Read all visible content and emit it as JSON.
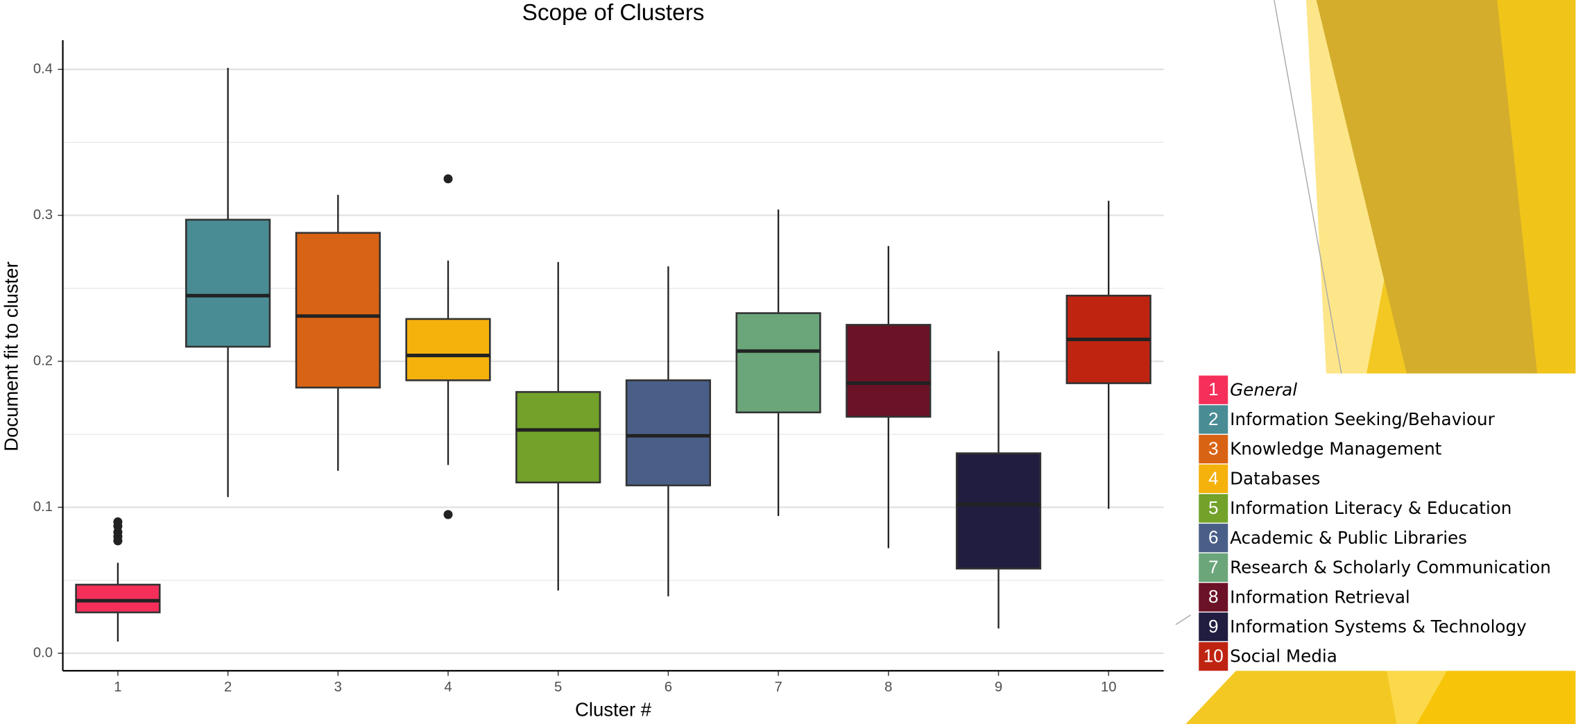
{
  "chart_data": {
    "type": "boxplot",
    "title": "Scope of Clusters",
    "x_label": "Cluster #",
    "y_label": "Document fit to cluster",
    "categories": [
      "1",
      "2",
      "3",
      "4",
      "5",
      "6",
      "7",
      "8",
      "9",
      "10"
    ],
    "ylim": [
      -0.012,
      0.42
    ],
    "yticks": [
      {
        "value": 0,
        "label": "0.0"
      },
      0.1,
      0.2,
      0.3,
      0.4
    ],
    "yminorticks": [
      0.05,
      0.15,
      0.25,
      0.35
    ],
    "grid": true,
    "legend_position": "right",
    "series": [
      {
        "name": "General",
        "italic": true,
        "color": "#f62f5a",
        "whislo": 0.008,
        "q1": 0.028,
        "med": 0.036,
        "q3": 0.047,
        "whishi": 0.062,
        "fliers": [
          0.077,
          0.08,
          0.083,
          0.087,
          0.09
        ]
      },
      {
        "name": "Information Seeking/Behaviour",
        "color": "#4a8c94",
        "whislo": 0.107,
        "q1": 0.21,
        "med": 0.245,
        "q3": 0.297,
        "whishi": 0.401,
        "fliers": []
      },
      {
        "name": "Knowledge Management",
        "color": "#d96314",
        "whislo": 0.125,
        "q1": 0.182,
        "med": 0.231,
        "q3": 0.288,
        "whishi": 0.314,
        "fliers": []
      },
      {
        "name": "Databases",
        "color": "#f5b10c",
        "whislo": 0.129,
        "q1": 0.187,
        "med": 0.204,
        "q3": 0.229,
        "whishi": 0.269,
        "fliers": [
          0.325,
          0.095
        ]
      },
      {
        "name": "Information Literacy & Education",
        "color": "#72a22a",
        "whislo": 0.043,
        "q1": 0.117,
        "med": 0.153,
        "q3": 0.179,
        "whishi": 0.268,
        "fliers": []
      },
      {
        "name": "Academic & Public Libraries",
        "color": "#4a5f88",
        "whislo": 0.039,
        "q1": 0.115,
        "med": 0.149,
        "q3": 0.187,
        "whishi": 0.265,
        "fliers": []
      },
      {
        "name": "Research & Scholarly Communication",
        "color": "#6aa67a",
        "whislo": 0.094,
        "q1": 0.165,
        "med": 0.207,
        "q3": 0.233,
        "whishi": 0.304,
        "fliers": []
      },
      {
        "name": "Information Retrieval",
        "color": "#6c1226",
        "whislo": 0.072,
        "q1": 0.162,
        "med": 0.185,
        "q3": 0.225,
        "whishi": 0.279,
        "fliers": []
      },
      {
        "name": "Information Systems & Technology",
        "color": "#211d40",
        "whislo": 0.017,
        "q1": 0.058,
        "med": 0.102,
        "q3": 0.137,
        "whishi": 0.207,
        "fliers": []
      },
      {
        "name": "Social Media",
        "color": "#bf2411",
        "whislo": 0.099,
        "q1": 0.185,
        "med": 0.215,
        "q3": 0.245,
        "whishi": 0.31,
        "fliers": []
      }
    ]
  }
}
